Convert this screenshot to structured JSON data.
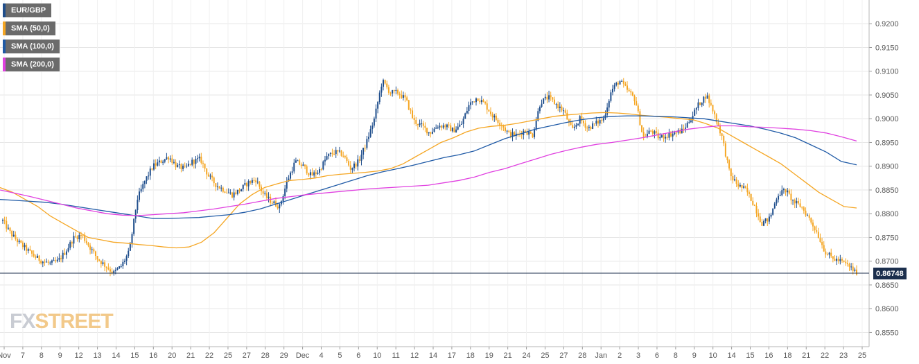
{
  "legend": {
    "items": [
      {
        "label": "EUR/GBP",
        "color": "#1f4e8c"
      },
      {
        "label": "SMA (50,0)",
        "color": "#f5a623"
      },
      {
        "label": "SMA (100,0)",
        "color": "#1f5aa6"
      },
      {
        "label": "SMA (200,0)",
        "color": "#e040e0"
      }
    ]
  },
  "watermark": {
    "part1": "FX",
    "part2": "STREET"
  },
  "current_price_label": "0.86748",
  "chart_data": {
    "type": "candlestick",
    "title": "",
    "xlabel": "",
    "ylabel": "",
    "ylim": [
      0.852,
      0.925
    ],
    "y_ticks": [
      "0.9200",
      "0.9150",
      "0.9100",
      "0.9050",
      "0.9000",
      "0.8950",
      "0.8900",
      "0.8850",
      "0.8800",
      "0.8750",
      "0.8700",
      "0.8650",
      "0.8600",
      "0.8550"
    ],
    "x_ticks": [
      "Nov",
      "7",
      "8",
      "9",
      "12",
      "13",
      "14",
      "15",
      "16",
      "20",
      "21",
      "22",
      "25",
      "27",
      "28",
      "29",
      "Dec",
      "4",
      "5",
      "6",
      "10",
      "11",
      "12",
      "14",
      "17",
      "18",
      "19",
      "21",
      "24",
      "25",
      "27",
      "28",
      "Jan",
      "2",
      "3",
      "6",
      "8",
      "9",
      "10",
      "14",
      "15",
      "16",
      "18",
      "21",
      "22",
      "23",
      "25"
    ],
    "current_price": 0.86748,
    "grid": true,
    "legend_position": "top-left",
    "colors": {
      "up": "#1f4e8c",
      "down": "#f5a623",
      "sma50": "#f5a623",
      "sma100": "#1f5aa6",
      "sma200": "#e040e0",
      "price_line": "#1c2f4d"
    },
    "close_path": [
      0.8785,
      0.8758,
      0.874,
      0.8725,
      0.871,
      0.87,
      0.8695,
      0.87,
      0.8722,
      0.875,
      0.8755,
      0.873,
      0.8705,
      0.869,
      0.8675,
      0.869,
      0.872,
      0.883,
      0.887,
      0.89,
      0.891,
      0.892,
      0.89,
      0.8895,
      0.891,
      0.8915,
      0.888,
      0.886,
      0.885,
      0.884,
      0.885,
      0.8865,
      0.8872,
      0.884,
      0.8825,
      0.8815,
      0.887,
      0.891,
      0.89,
      0.888,
      0.889,
      0.892,
      0.893,
      0.8925,
      0.8895,
      0.891,
      0.895,
      0.9,
      0.908,
      0.9055,
      0.9055,
      0.904,
      0.8995,
      0.8985,
      0.897,
      0.8985,
      0.8985,
      0.8975,
      0.8988,
      0.903,
      0.9045,
      0.903,
      0.9005,
      0.899,
      0.8968,
      0.8965,
      0.8975,
      0.8965,
      0.9035,
      0.9045,
      0.903,
      0.9015,
      0.8975,
      0.9,
      0.898,
      0.899,
      0.9,
      0.906,
      0.908,
      0.906,
      0.904,
      0.896,
      0.8975,
      0.896,
      0.8965,
      0.897,
      0.8975,
      0.9,
      0.903,
      0.905,
      0.901,
      0.896,
      0.888,
      0.886,
      0.885,
      0.882,
      0.878,
      0.879,
      0.884,
      0.885,
      0.8825,
      0.8815,
      0.879,
      0.876,
      0.872,
      0.8705,
      0.87,
      0.869,
      0.8675
    ],
    "sma50": [
      0.8855,
      0.8845,
      0.883,
      0.8815,
      0.8795,
      0.878,
      0.8765,
      0.875,
      0.8745,
      0.874,
      0.8738,
      0.8735,
      0.8733,
      0.873,
      0.8728,
      0.873,
      0.874,
      0.876,
      0.879,
      0.882,
      0.884,
      0.8855,
      0.8863,
      0.887,
      0.8872,
      0.8875,
      0.888,
      0.8883,
      0.8885,
      0.8887,
      0.889,
      0.8895,
      0.8905,
      0.892,
      0.8935,
      0.895,
      0.896,
      0.8972,
      0.898,
      0.8984,
      0.8986,
      0.899,
      0.8995,
      0.9,
      0.9005,
      0.9008,
      0.901,
      0.9012,
      0.9013,
      0.9012,
      0.901,
      0.9007,
      0.9005,
      0.9003,
      0.9,
      0.8998,
      0.899,
      0.898,
      0.8965,
      0.895,
      0.8935,
      0.892,
      0.8905,
      0.8885,
      0.8865,
      0.8845,
      0.883,
      0.8815,
      0.8812
    ],
    "sma100": [
      0.883,
      0.8828,
      0.8826,
      0.8824,
      0.882,
      0.8815,
      0.881,
      0.8805,
      0.88,
      0.8795,
      0.879,
      0.879,
      0.8791,
      0.8792,
      0.8795,
      0.8798,
      0.8803,
      0.881,
      0.882,
      0.883,
      0.884,
      0.885,
      0.886,
      0.887,
      0.888,
      0.8888,
      0.8895,
      0.8902,
      0.891,
      0.8918,
      0.8924,
      0.8932,
      0.8945,
      0.8958,
      0.8968,
      0.8978,
      0.8985,
      0.8992,
      0.8998,
      0.9002,
      0.9005,
      0.9006,
      0.9006,
      0.9005,
      0.9004,
      0.9002,
      0.9,
      0.8995,
      0.899,
      0.8985,
      0.8978,
      0.897,
      0.896,
      0.8945,
      0.893,
      0.891,
      0.8903
    ],
    "sma200": [
      0.885,
      0.8843,
      0.8836,
      0.8828,
      0.882,
      0.8812,
      0.8806,
      0.88,
      0.8797,
      0.8796,
      0.8798,
      0.88,
      0.8802,
      0.8806,
      0.881,
      0.8815,
      0.882,
      0.8826,
      0.8832,
      0.8836,
      0.884,
      0.8843,
      0.8846,
      0.8849,
      0.8852,
      0.8854,
      0.8856,
      0.8858,
      0.886,
      0.8865,
      0.887,
      0.8877,
      0.8887,
      0.8895,
      0.8905,
      0.8915,
      0.8925,
      0.8933,
      0.894,
      0.8946,
      0.895,
      0.8955,
      0.896,
      0.8966,
      0.8972,
      0.8978,
      0.8982,
      0.8985,
      0.8985,
      0.8983,
      0.8982,
      0.898,
      0.8978,
      0.8975,
      0.897,
      0.8962,
      0.8953
    ]
  }
}
